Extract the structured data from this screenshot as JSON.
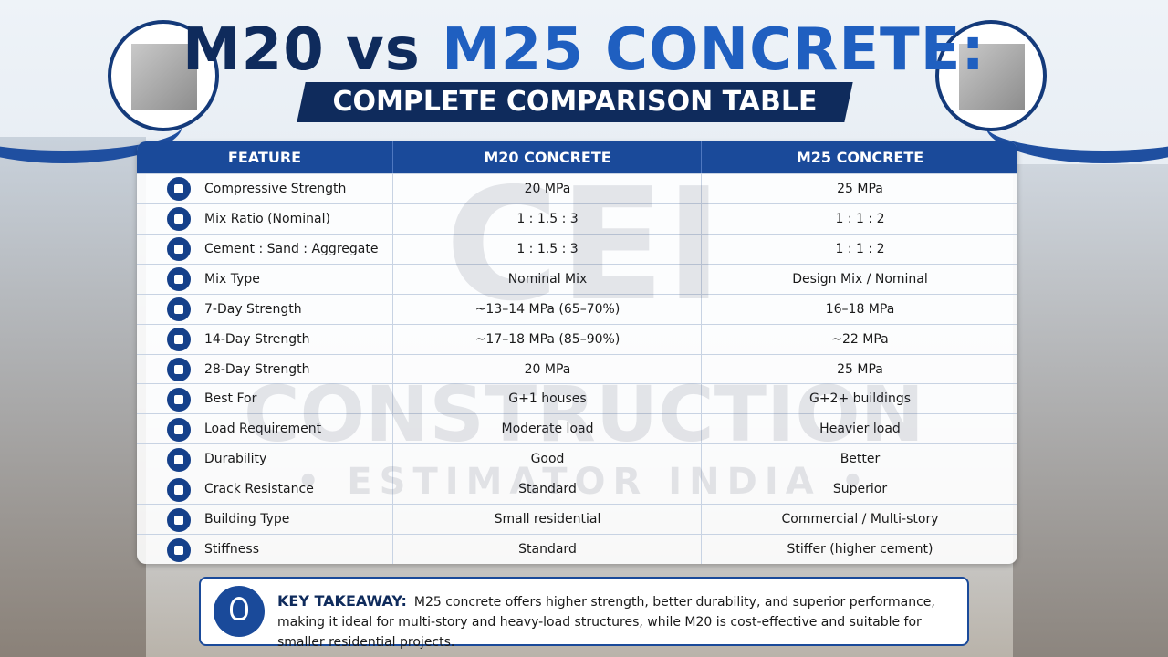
{
  "header": {
    "title_part1": "M20 vs",
    "title_part2": "M25 CONCRETE:",
    "subtitle": "COMPLETE COMPARISON TABLE"
  },
  "watermark": {
    "logo": "CEI",
    "line1": "CONSTRUCTION",
    "line2": "• ESTIMATOR INDIA •"
  },
  "table": {
    "columns": [
      "FEATURE",
      "M20 CONCRETE",
      "M25 CONCRETE"
    ],
    "rows": [
      [
        "Compressive Strength",
        "20 MPa",
        "25 MPa"
      ],
      [
        "Mix Ratio (Nominal)",
        "1 : 1.5 : 3",
        "1 : 1 : 2"
      ],
      [
        "Cement : Sand : Aggregate",
        "1 : 1.5 : 3",
        "1 : 1 : 2"
      ],
      [
        "Mix Type",
        "Nominal Mix",
        "Design Mix / Nominal"
      ],
      [
        "7-Day Strength",
        "~13–14 MPa (65–70%)",
        "16–18 MPa"
      ],
      [
        "14-Day Strength",
        "~17–18 MPa (85–90%)",
        "~22 MPa"
      ],
      [
        "28-Day Strength",
        "20 MPa",
        "25 MPa"
      ],
      [
        "Best For",
        "G+1 houses",
        "G+2+ buildings"
      ],
      [
        "Load Requirement",
        "Moderate load",
        "Heavier load"
      ],
      [
        "Durability",
        "Good",
        "Better"
      ],
      [
        "Crack Resistance",
        "Standard",
        "Superior"
      ],
      [
        "Building Type",
        "Small residential",
        "Commercial / Multi-story"
      ],
      [
        "Stiffness",
        "Standard",
        "Stiffer (higher cement)"
      ]
    ]
  },
  "takeaway": {
    "label": "KEY TAKEAWAY:",
    "text": "M25 concrete offers higher strength, better durability, and superior performance, making it ideal for multi-story and heavy-load structures, while M20 is cost-effective and suitable for smaller residential projects."
  }
}
